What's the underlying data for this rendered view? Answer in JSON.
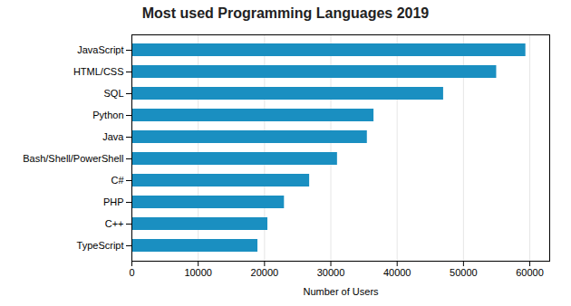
{
  "chart_data": {
    "type": "bar",
    "title": "Most used Programming Languages 2019",
    "xlabel": "Number of Users",
    "categories": [
      "TypeScript",
      "C++",
      "PHP",
      "C#",
      "Bash/Shell/PowerShell",
      "Java",
      "Python",
      "SQL",
      "HTML/CSS",
      "JavaScript"
    ],
    "values": [
      19000,
      20500,
      23000,
      26800,
      31000,
      35500,
      36500,
      47000,
      55000,
      59400
    ],
    "color": "#1a8fc1",
    "orientation": "horizontal",
    "xlim": [
      0,
      63000
    ],
    "xticks": [
      0,
      10000,
      20000,
      30000,
      40000,
      50000,
      60000
    ],
    "grid": true
  }
}
